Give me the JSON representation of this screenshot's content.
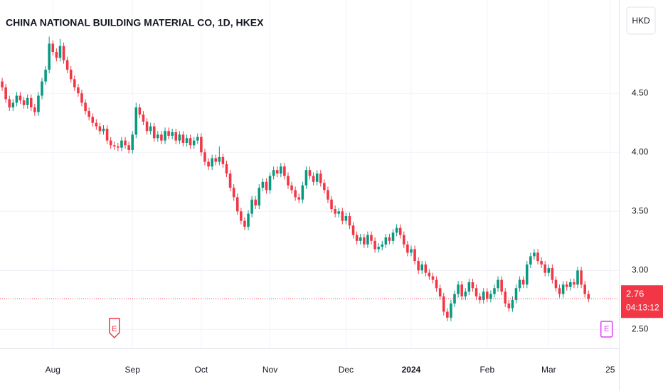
{
  "chart_data": {
    "type": "candlestick",
    "title": "CHINA NATIONAL BUILDING MATERIAL CO, 1D, HKEX",
    "currency": "HKD",
    "up_color": "#089981",
    "down_color": "#f23645",
    "ohlc": [
      [
        4.6,
        4.63,
        4.52,
        4.55
      ],
      [
        4.55,
        4.58,
        4.42,
        4.45
      ],
      [
        4.45,
        4.48,
        4.35,
        4.38
      ],
      [
        4.38,
        4.45,
        4.35,
        4.42
      ],
      [
        4.42,
        4.51,
        4.39,
        4.48
      ],
      [
        4.48,
        4.51,
        4.41,
        4.44
      ],
      [
        4.44,
        4.47,
        4.37,
        4.4
      ],
      [
        4.4,
        4.49,
        4.37,
        4.46
      ],
      [
        4.46,
        4.49,
        4.35,
        4.38
      ],
      [
        4.38,
        4.41,
        4.31,
        4.34
      ],
      [
        4.34,
        4.51,
        4.31,
        4.48
      ],
      [
        4.48,
        4.63,
        4.45,
        4.6
      ],
      [
        4.6,
        4.73,
        4.57,
        4.7
      ],
      [
        4.7,
        4.98,
        4.67,
        4.92
      ],
      [
        4.92,
        4.95,
        4.82,
        4.85
      ],
      [
        4.85,
        4.88,
        4.77,
        4.8
      ],
      [
        4.8,
        4.96,
        4.77,
        4.9
      ],
      [
        4.9,
        4.93,
        4.75,
        4.78
      ],
      [
        4.78,
        4.81,
        4.67,
        4.7
      ],
      [
        4.7,
        4.73,
        4.59,
        4.62
      ],
      [
        4.62,
        4.65,
        4.52,
        4.55
      ],
      [
        4.55,
        4.58,
        4.47,
        4.5
      ],
      [
        4.5,
        4.53,
        4.39,
        4.42
      ],
      [
        4.42,
        4.45,
        4.32,
        4.35
      ],
      [
        4.35,
        4.38,
        4.27,
        4.3
      ],
      [
        4.3,
        4.33,
        4.22,
        4.25
      ],
      [
        4.25,
        4.28,
        4.19,
        4.22
      ],
      [
        4.22,
        4.25,
        4.15,
        4.18
      ],
      [
        4.18,
        4.23,
        4.15,
        4.2
      ],
      [
        4.2,
        4.23,
        4.07,
        4.1
      ],
      [
        4.1,
        4.13,
        4.03,
        4.06
      ],
      [
        4.06,
        4.09,
        4.02,
        4.05
      ],
      [
        4.05,
        4.08,
        4.01,
        4.04
      ],
      [
        4.04,
        4.13,
        4.01,
        4.1
      ],
      [
        4.1,
        4.13,
        4.03,
        4.06
      ],
      [
        4.06,
        4.09,
        3.99,
        4.02
      ],
      [
        4.02,
        4.18,
        3.99,
        4.15
      ],
      [
        4.15,
        4.42,
        4.12,
        4.38
      ],
      [
        4.38,
        4.41,
        4.29,
        4.32
      ],
      [
        4.32,
        4.35,
        4.23,
        4.26
      ],
      [
        4.26,
        4.29,
        4.15,
        4.18
      ],
      [
        4.18,
        4.25,
        4.15,
        4.22
      ],
      [
        4.22,
        4.25,
        4.09,
        4.12
      ],
      [
        4.12,
        4.18,
        4.09,
        4.15
      ],
      [
        4.15,
        4.18,
        4.07,
        4.1
      ],
      [
        4.1,
        4.21,
        4.07,
        4.18
      ],
      [
        4.18,
        4.21,
        4.11,
        4.14
      ],
      [
        4.14,
        4.2,
        4.11,
        4.17
      ],
      [
        4.17,
        4.2,
        4.07,
        4.1
      ],
      [
        4.1,
        4.18,
        4.07,
        4.15
      ],
      [
        4.15,
        4.18,
        4.05,
        4.08
      ],
      [
        4.08,
        4.15,
        4.05,
        4.12
      ],
      [
        4.12,
        4.15,
        4.03,
        4.06
      ],
      [
        4.06,
        4.13,
        4.03,
        4.1
      ],
      [
        4.1,
        4.16,
        4.07,
        4.13
      ],
      [
        4.13,
        4.16,
        3.97,
        4.0
      ],
      [
        4.0,
        4.03,
        3.89,
        3.92
      ],
      [
        3.92,
        3.95,
        3.85,
        3.88
      ],
      [
        3.88,
        3.98,
        3.85,
        3.95
      ],
      [
        3.95,
        3.98,
        3.89,
        3.92
      ],
      [
        3.92,
        4.05,
        3.89,
        3.96
      ],
      [
        3.96,
        3.99,
        3.87,
        3.9
      ],
      [
        3.9,
        3.93,
        3.79,
        3.82
      ],
      [
        3.82,
        3.85,
        3.67,
        3.7
      ],
      [
        3.7,
        3.73,
        3.59,
        3.62
      ],
      [
        3.62,
        3.65,
        3.47,
        3.5
      ],
      [
        3.5,
        3.53,
        3.39,
        3.42
      ],
      [
        3.42,
        3.45,
        3.34,
        3.37
      ],
      [
        3.37,
        3.51,
        3.34,
        3.48
      ],
      [
        3.48,
        3.63,
        3.45,
        3.6
      ],
      [
        3.6,
        3.63,
        3.52,
        3.55
      ],
      [
        3.55,
        3.73,
        3.52,
        3.7
      ],
      [
        3.7,
        3.78,
        3.67,
        3.75
      ],
      [
        3.75,
        3.78,
        3.65,
        3.68
      ],
      [
        3.68,
        3.83,
        3.65,
        3.8
      ],
      [
        3.8,
        3.88,
        3.77,
        3.85
      ],
      [
        3.85,
        3.88,
        3.79,
        3.82
      ],
      [
        3.82,
        3.91,
        3.79,
        3.88
      ],
      [
        3.88,
        3.91,
        3.77,
        3.8
      ],
      [
        3.8,
        3.83,
        3.69,
        3.72
      ],
      [
        3.72,
        3.75,
        3.65,
        3.68
      ],
      [
        3.68,
        3.71,
        3.59,
        3.62
      ],
      [
        3.62,
        3.65,
        3.57,
        3.6
      ],
      [
        3.6,
        3.75,
        3.57,
        3.72
      ],
      [
        3.72,
        3.88,
        3.69,
        3.85
      ],
      [
        3.85,
        3.88,
        3.77,
        3.8
      ],
      [
        3.8,
        3.83,
        3.72,
        3.75
      ],
      [
        3.75,
        3.85,
        3.72,
        3.82
      ],
      [
        3.82,
        3.85,
        3.71,
        3.74
      ],
      [
        3.74,
        3.77,
        3.65,
        3.68
      ],
      [
        3.68,
        3.71,
        3.57,
        3.6
      ],
      [
        3.6,
        3.63,
        3.49,
        3.52
      ],
      [
        3.52,
        3.55,
        3.45,
        3.48
      ],
      [
        3.48,
        3.53,
        3.45,
        3.5
      ],
      [
        3.5,
        3.53,
        3.39,
        3.42
      ],
      [
        3.42,
        3.49,
        3.39,
        3.46
      ],
      [
        3.46,
        3.49,
        3.35,
        3.38
      ],
      [
        3.38,
        3.41,
        3.27,
        3.3
      ],
      [
        3.3,
        3.33,
        3.22,
        3.25
      ],
      [
        3.25,
        3.31,
        3.22,
        3.28
      ],
      [
        3.28,
        3.31,
        3.19,
        3.22
      ],
      [
        3.22,
        3.33,
        3.19,
        3.3
      ],
      [
        3.3,
        3.33,
        3.22,
        3.25
      ],
      [
        3.25,
        3.28,
        3.15,
        3.18
      ],
      [
        3.18,
        3.23,
        3.15,
        3.2
      ],
      [
        3.2,
        3.25,
        3.17,
        3.22
      ],
      [
        3.22,
        3.31,
        3.19,
        3.28
      ],
      [
        3.28,
        3.31,
        3.22,
        3.25
      ],
      [
        3.25,
        3.35,
        3.22,
        3.32
      ],
      [
        3.32,
        3.39,
        3.29,
        3.36
      ],
      [
        3.36,
        3.39,
        3.27,
        3.3
      ],
      [
        3.3,
        3.33,
        3.19,
        3.22
      ],
      [
        3.22,
        3.25,
        3.12,
        3.15
      ],
      [
        3.15,
        3.21,
        3.12,
        3.18
      ],
      [
        3.18,
        3.21,
        3.05,
        3.08
      ],
      [
        3.08,
        3.11,
        2.97,
        3.0
      ],
      [
        3.0,
        3.08,
        2.97,
        3.05
      ],
      [
        3.05,
        3.08,
        2.95,
        2.98
      ],
      [
        2.98,
        3.01,
        2.92,
        2.95
      ],
      [
        2.95,
        2.98,
        2.89,
        2.92
      ],
      [
        2.92,
        2.95,
        2.82,
        2.85
      ],
      [
        2.85,
        2.88,
        2.75,
        2.78
      ],
      [
        2.78,
        2.81,
        2.62,
        2.65
      ],
      [
        2.65,
        2.68,
        2.57,
        2.6
      ],
      [
        2.6,
        2.75,
        2.57,
        2.72
      ],
      [
        2.72,
        2.83,
        2.69,
        2.8
      ],
      [
        2.8,
        2.91,
        2.77,
        2.88
      ],
      [
        2.88,
        2.91,
        2.75,
        2.78
      ],
      [
        2.78,
        2.85,
        2.75,
        2.82
      ],
      [
        2.82,
        2.93,
        2.79,
        2.9
      ],
      [
        2.9,
        2.93,
        2.82,
        2.85
      ],
      [
        2.85,
        2.88,
        2.75,
        2.78
      ],
      [
        2.78,
        2.81,
        2.72,
        2.75
      ],
      [
        2.75,
        2.85,
        2.72,
        2.82
      ],
      [
        2.82,
        2.85,
        2.73,
        2.76
      ],
      [
        2.76,
        2.83,
        2.73,
        2.8
      ],
      [
        2.8,
        2.88,
        2.77,
        2.85
      ],
      [
        2.85,
        2.95,
        2.82,
        2.92
      ],
      [
        2.92,
        2.95,
        2.79,
        2.82
      ],
      [
        2.82,
        2.85,
        2.69,
        2.72
      ],
      [
        2.72,
        2.75,
        2.65,
        2.68
      ],
      [
        2.68,
        2.78,
        2.65,
        2.75
      ],
      [
        2.75,
        2.88,
        2.72,
        2.85
      ],
      [
        2.85,
        2.95,
        2.82,
        2.92
      ],
      [
        2.92,
        2.95,
        2.85,
        2.88
      ],
      [
        2.88,
        3.08,
        2.85,
        3.05
      ],
      [
        3.05,
        3.15,
        3.02,
        3.12
      ],
      [
        3.12,
        3.18,
        3.09,
        3.15
      ],
      [
        3.15,
        3.18,
        3.05,
        3.08
      ],
      [
        3.08,
        3.11,
        3.02,
        3.05
      ],
      [
        3.05,
        3.08,
        2.95,
        2.98
      ],
      [
        2.98,
        3.05,
        2.95,
        3.02
      ],
      [
        3.02,
        3.05,
        2.89,
        2.92
      ],
      [
        2.92,
        2.95,
        2.82,
        2.85
      ],
      [
        2.85,
        2.88,
        2.77,
        2.8
      ],
      [
        2.8,
        2.91,
        2.77,
        2.88
      ],
      [
        2.88,
        2.91,
        2.83,
        2.86
      ],
      [
        2.86,
        2.93,
        2.83,
        2.9
      ],
      [
        2.9,
        2.93,
        2.85,
        2.88
      ],
      [
        2.88,
        3.03,
        2.85,
        3.0
      ],
      [
        3.0,
        3.03,
        2.85,
        2.88
      ],
      [
        2.88,
        2.91,
        2.77,
        2.8
      ],
      [
        2.8,
        2.83,
        2.73,
        2.76
      ]
    ],
    "xlim": [
      -0.6,
      170.4
    ],
    "xticks": [
      {
        "value": 14,
        "label": "Aug"
      },
      {
        "value": 36,
        "label": "Sep"
      },
      {
        "value": 55,
        "label": "Oct"
      },
      {
        "value": 74,
        "label": "Nov"
      },
      {
        "value": 95,
        "label": "Dec"
      },
      {
        "value": 113,
        "label": "2024",
        "bold": true
      },
      {
        "value": 134,
        "label": "Feb"
      },
      {
        "value": 151,
        "label": "Mar"
      },
      {
        "value": 168,
        "label": "25"
      }
    ],
    "ylim": [
      2.34,
      5.29
    ],
    "yticks": [
      {
        "value": 2.5,
        "label": "2.50"
      },
      {
        "value": 3,
        "label": "3.00"
      },
      {
        "value": 3.5,
        "label": "3.50"
      },
      {
        "value": 4,
        "label": "4.00"
      },
      {
        "value": 4.5,
        "label": "4.50"
      }
    ],
    "grid": true,
    "last_price": 2.76,
    "countdown": "04:13:12",
    "events": [
      {
        "index": 31,
        "label": "E",
        "color": "#f23645"
      },
      {
        "index": 167,
        "label": "E",
        "color": "#e040fb"
      }
    ]
  }
}
